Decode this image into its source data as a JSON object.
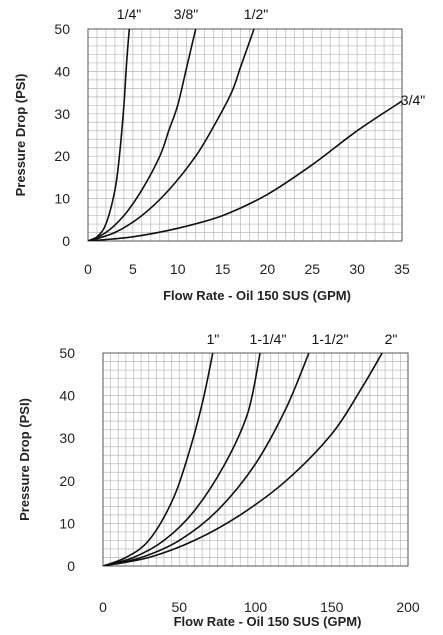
{
  "chart_data": [
    {
      "type": "line",
      "title": "",
      "xlabel": "Flow Rate - Oil 150 SUS (GPM)",
      "ylabel": "Pressure Drop (PSI)",
      "xlim": [
        0,
        35
      ],
      "ylim": [
        0,
        50
      ],
      "x_ticks": [
        "0",
        "5",
        "10",
        "15",
        "20",
        "25",
        "30",
        "35"
      ],
      "y_ticks": [
        "0",
        "10",
        "20",
        "30",
        "40",
        "50"
      ],
      "grid": true,
      "legend": "none",
      "series": [
        {
          "name": "1/4\"",
          "x": [
            0,
            1,
            2,
            3,
            3.5,
            4,
            4.3,
            4.6
          ],
          "y": [
            0,
            1,
            4,
            12,
            20,
            32,
            42,
            50
          ]
        },
        {
          "name": "3/8\"",
          "x": [
            0,
            2,
            4,
            6,
            8,
            9,
            10,
            11,
            12
          ],
          "y": [
            0,
            2,
            6,
            12,
            20,
            26,
            32,
            41,
            50
          ]
        },
        {
          "name": "1/2\"",
          "x": [
            0,
            3,
            6,
            9,
            12,
            14,
            16,
            17,
            18.5
          ],
          "y": [
            0,
            2,
            6,
            12,
            20,
            27,
            35,
            41,
            50
          ]
        },
        {
          "name": "3/4\"",
          "x": [
            0,
            5,
            10,
            15,
            20,
            25,
            30,
            35
          ],
          "y": [
            0,
            1,
            3,
            6,
            11,
            18,
            26,
            33
          ]
        }
      ]
    },
    {
      "type": "line",
      "title": "",
      "xlabel": "Flow Rate - Oil 150 SUS (GPM)",
      "ylabel": "Pressure Drop (PSI)",
      "xlim": [
        0,
        200
      ],
      "ylim": [
        0,
        50
      ],
      "x_ticks": [
        "0",
        "50",
        "100",
        "150",
        "200"
      ],
      "y_ticks": [
        "0",
        "10",
        "20",
        "30",
        "40",
        "50"
      ],
      "grid": true,
      "legend": "none",
      "series": [
        {
          "name": "1\"",
          "x": [
            0,
            15,
            30,
            45,
            55,
            65,
            72
          ],
          "y": [
            0,
            2,
            6,
            15,
            25,
            38,
            50
          ]
        },
        {
          "name": "1-1/4\"",
          "x": [
            0,
            20,
            40,
            60,
            80,
            95,
            103
          ],
          "y": [
            0,
            2,
            6,
            13,
            24,
            36,
            50
          ]
        },
        {
          "name": "1-1/2\"",
          "x": [
            0,
            25,
            50,
            75,
            100,
            120,
            135
          ],
          "y": [
            0,
            2,
            6,
            13,
            24,
            37,
            50
          ]
        },
        {
          "name": "2\"",
          "x": [
            0,
            30,
            60,
            90,
            120,
            150,
            170,
            183
          ],
          "y": [
            0,
            2,
            6,
            12,
            20,
            31,
            42,
            50
          ]
        }
      ]
    }
  ]
}
